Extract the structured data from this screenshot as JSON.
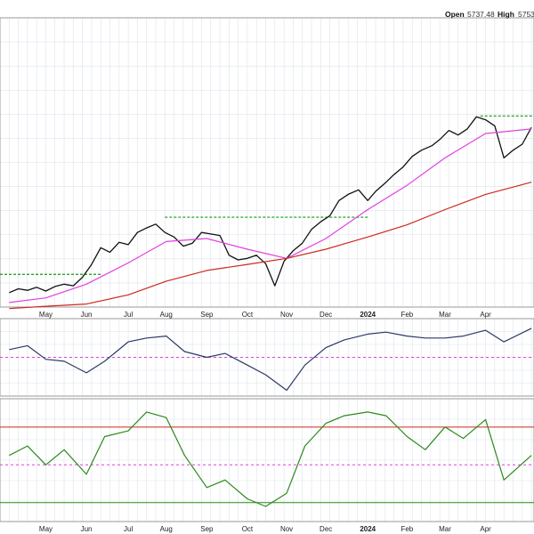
{
  "header": {
    "open_label": "Open",
    "open_value": "5737.48",
    "high_label": "High",
    "high_value": "5753"
  },
  "colors": {
    "price": "#111111",
    "ma_short": "#e040e0",
    "ma_long": "#cc2a1a",
    "resistance": "#119911",
    "indicator_line": "#2a3a66",
    "rsi_line": "#2a8a1a",
    "midline_dashed": "#e040e0",
    "upper_band": "#cc2a1a",
    "lower_band": "#2a8a1a",
    "grid": "#dde3ea",
    "panel_border": "#999999"
  },
  "chart_data": [
    {
      "type": "line",
      "panel": "price",
      "x_range": [
        "2023-03-27",
        "2024-05-08"
      ],
      "ylim": [
        4000,
        5900
      ],
      "grid": true,
      "series": [
        {
          "role": "price",
          "x": [
            "2023-04-03",
            "2023-04-10",
            "2023-04-17",
            "2023-04-24",
            "2023-05-01",
            "2023-05-08",
            "2023-05-15",
            "2023-05-22",
            "2023-05-29",
            "2023-06-05",
            "2023-06-12",
            "2023-06-19",
            "2023-06-26",
            "2023-07-03",
            "2023-07-10",
            "2023-07-17",
            "2023-07-24",
            "2023-07-31",
            "2023-08-07",
            "2023-08-14",
            "2023-08-21",
            "2023-08-28",
            "2023-09-04",
            "2023-09-11",
            "2023-09-18",
            "2023-09-25",
            "2023-10-02",
            "2023-10-09",
            "2023-10-16",
            "2023-10-23",
            "2023-10-30",
            "2023-11-06",
            "2023-11-13",
            "2023-11-20",
            "2023-11-27",
            "2023-12-04",
            "2023-12-11",
            "2023-12-18",
            "2023-12-26",
            "2024-01-02",
            "2024-01-08",
            "2024-01-16",
            "2024-01-22",
            "2024-01-29",
            "2024-02-05",
            "2024-02-12",
            "2024-02-20",
            "2024-02-26",
            "2024-03-04",
            "2024-03-11",
            "2024-03-18",
            "2024-03-25",
            "2024-04-01",
            "2024-04-08",
            "2024-04-15",
            "2024-04-22",
            "2024-04-29",
            "2024-05-06"
          ],
          "values": [
            4095,
            4120,
            4110,
            4130,
            4105,
            4135,
            4150,
            4140,
            4195,
            4280,
            4390,
            4360,
            4425,
            4410,
            4490,
            4520,
            4545,
            4490,
            4460,
            4400,
            4420,
            4490,
            4480,
            4470,
            4340,
            4310,
            4320,
            4340,
            4285,
            4140,
            4300,
            4370,
            4420,
            4510,
            4560,
            4600,
            4700,
            4740,
            4770,
            4700,
            4760,
            4820,
            4870,
            4920,
            4990,
            5030,
            5060,
            5100,
            5160,
            5130,
            5170,
            5250,
            5230,
            5190,
            4980,
            5030,
            5070,
            5180
          ]
        },
        {
          "role": "ma_short",
          "x": [
            "2023-04-03",
            "2023-05-01",
            "2023-06-01",
            "2023-07-03",
            "2023-08-01",
            "2023-09-01",
            "2023-10-02",
            "2023-11-01",
            "2023-12-01",
            "2024-01-02",
            "2024-02-01",
            "2024-03-01",
            "2024-04-01",
            "2024-05-06"
          ],
          "values": [
            4030,
            4060,
            4150,
            4290,
            4430,
            4450,
            4380,
            4320,
            4450,
            4640,
            4800,
            4980,
            5140,
            5170
          ]
        },
        {
          "role": "ma_long",
          "x": [
            "2023-04-03",
            "2023-05-01",
            "2023-06-01",
            "2023-07-03",
            "2023-08-01",
            "2023-09-01",
            "2023-10-02",
            "2023-11-01",
            "2023-12-01",
            "2024-01-02",
            "2024-02-01",
            "2024-03-01",
            "2024-04-01",
            "2024-05-06"
          ],
          "values": [
            3990,
            4005,
            4020,
            4080,
            4170,
            4240,
            4280,
            4320,
            4380,
            4460,
            4540,
            4640,
            4740,
            4820
          ]
        }
      ],
      "resistance_levels": [
        {
          "x_start": "2023-03-27",
          "x_end": "2023-06-12",
          "value": 4215
        },
        {
          "x_start": "2023-07-31",
          "x_end": "2024-01-02",
          "value": 4590
        },
        {
          "x_start": "2024-03-28",
          "x_end": "2024-05-08",
          "value": 5255
        }
      ]
    },
    {
      "type": "line",
      "panel": "indicator",
      "x_range": [
        "2023-03-27",
        "2024-05-08"
      ],
      "ylim": [
        -100,
        100
      ],
      "grid": true,
      "series": [
        {
          "role": "indicator",
          "x": [
            "2023-04-03",
            "2023-04-17",
            "2023-05-01",
            "2023-05-15",
            "2023-06-01",
            "2023-06-15",
            "2023-07-03",
            "2023-07-17",
            "2023-08-01",
            "2023-08-15",
            "2023-09-01",
            "2023-09-15",
            "2023-10-02",
            "2023-10-16",
            "2023-11-01",
            "2023-11-15",
            "2023-12-01",
            "2023-12-15",
            "2024-01-02",
            "2024-01-16",
            "2024-02-01",
            "2024-02-15",
            "2024-03-01",
            "2024-03-15",
            "2024-04-01",
            "2024-04-15",
            "2024-05-06"
          ],
          "values": [
            20,
            30,
            -5,
            -10,
            -40,
            -10,
            40,
            50,
            55,
            15,
            0,
            10,
            -20,
            -45,
            -85,
            -20,
            25,
            45,
            60,
            65,
            55,
            50,
            50,
            55,
            70,
            40,
            75
          ]
        }
      ],
      "reference_lines": [
        0
      ]
    },
    {
      "type": "line",
      "panel": "rsi",
      "x_range": [
        "2023-03-27",
        "2024-05-08"
      ],
      "ylim": [
        20,
        85
      ],
      "grid": true,
      "series": [
        {
          "role": "rsi",
          "x": [
            "2023-04-03",
            "2023-04-17",
            "2023-05-01",
            "2023-05-15",
            "2023-06-01",
            "2023-06-15",
            "2023-07-03",
            "2023-07-17",
            "2023-08-01",
            "2023-08-15",
            "2023-09-01",
            "2023-09-15",
            "2023-10-02",
            "2023-10-16",
            "2023-11-01",
            "2023-11-15",
            "2023-12-01",
            "2023-12-15",
            "2024-01-02",
            "2024-01-16",
            "2024-02-01",
            "2024-02-15",
            "2024-03-01",
            "2024-03-15",
            "2024-04-01",
            "2024-04-15",
            "2024-05-06"
          ],
          "values": [
            55,
            60,
            50,
            58,
            45,
            65,
            68,
            78,
            75,
            55,
            38,
            42,
            32,
            28,
            35,
            60,
            72,
            76,
            78,
            76,
            65,
            58,
            70,
            64,
            74,
            42,
            55
          ]
        }
      ],
      "reference_lines": [
        70,
        50,
        30
      ]
    }
  ],
  "x_axis": {
    "months": [
      {
        "label": "May",
        "date": "2023-05-01"
      },
      {
        "label": "Jun",
        "date": "2023-06-01"
      },
      {
        "label": "Jul",
        "date": "2023-07-03"
      },
      {
        "label": "Aug",
        "date": "2023-08-01"
      },
      {
        "label": "Sep",
        "date": "2023-09-01"
      },
      {
        "label": "Oct",
        "date": "2023-10-02"
      },
      {
        "label": "Nov",
        "date": "2023-11-01"
      },
      {
        "label": "Dec",
        "date": "2023-12-01"
      },
      {
        "label": "2024",
        "date": "2024-01-02",
        "emphasis": true
      },
      {
        "label": "Feb",
        "date": "2024-02-01"
      },
      {
        "label": "Mar",
        "date": "2024-03-01"
      },
      {
        "label": "Apr",
        "date": "2024-04-01"
      }
    ]
  }
}
